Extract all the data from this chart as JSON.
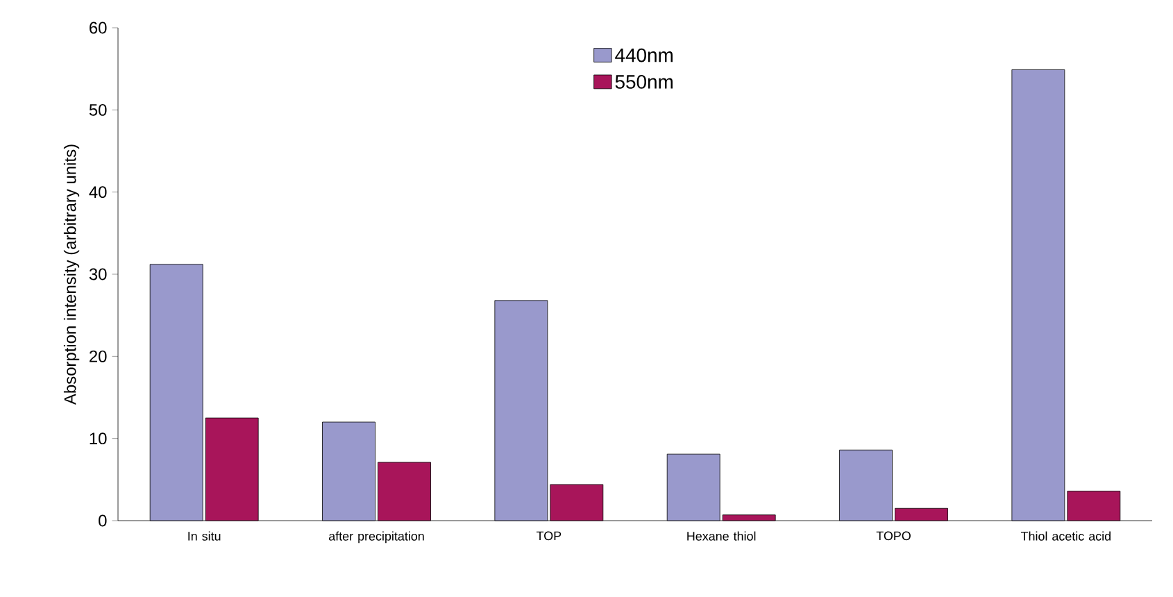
{
  "chart_data": {
    "type": "bar",
    "ylabel": "Absorption intensity (arbitrary units)",
    "categories": [
      "In situ",
      "after precipitation",
      "TOP",
      "Hexane thiol",
      "TOPO",
      "Thiol acetic acid"
    ],
    "series": [
      {
        "name": "440nm",
        "color": "#9999cc",
        "values": [
          31.2,
          12.0,
          26.8,
          8.1,
          8.6,
          54.9
        ]
      },
      {
        "name": "550nm",
        "color": "#a8155a",
        "values": [
          12.5,
          7.1,
          4.4,
          0.7,
          1.5,
          3.6
        ]
      }
    ],
    "ylim": [
      0,
      60
    ],
    "yticks": [
      0,
      10,
      20,
      30,
      40,
      50,
      60
    ],
    "legend": "top",
    "grid": false
  }
}
